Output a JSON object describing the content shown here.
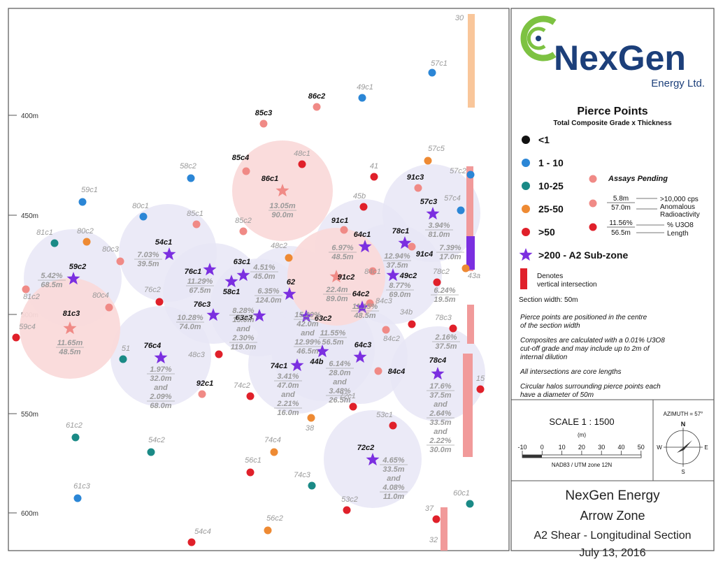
{
  "company": {
    "name": "NexGen",
    "sub": "Energy Ltd."
  },
  "legend": {
    "title": "Pierce Points",
    "subtitle": "Total Composite Grade x Thickness",
    "classes": [
      {
        "label": "<1",
        "color": "#111111"
      },
      {
        "label": "1 - 10",
        "color": "#2b86d6"
      },
      {
        "label": "10-25",
        "color": "#1a8a86"
      },
      {
        "label": "25-50",
        "color": "#ee8a33"
      },
      {
        "label": ">50",
        "color": "#e0202a"
      },
      {
        "label": ">200 - A2 Sub-zone",
        "color": "#7b2fe0"
      }
    ],
    "assays_pending": "Assays Pending",
    "anomalous_top": "5.8m",
    "anomalous_bottom": "57.0m",
    "anomalous_label1": ">10,000 cps",
    "anomalous_label2": "Anomalous",
    "anomalous_label3": "Radioactivity",
    "grade_top": "11.56%",
    "grade_bottom": "56.5m",
    "grade_label1": "% U3O8",
    "grade_label2": "Length",
    "vertical_label1": "Denotes",
    "vertical_label2": "vertical intersection",
    "section_width": "Section width: 50m",
    "notes": [
      "Pierce points are positioned in the centre",
      "of the section width",
      "Composites are calculated with a 0.01% U3O8",
      "cut-off grade and may include up to 2m of",
      "internal dilution",
      "All intersections are core lengths",
      "Circular halos surrounding pierce points each",
      "have a diameter of 50m"
    ]
  },
  "scale": {
    "label": "SCALE  1 : 1500",
    "unit": "(m)",
    "ticks": [
      "-10",
      "0",
      "10",
      "20",
      "30",
      "40",
      "50"
    ],
    "datum": "NAD83 / UTM zone 12N"
  },
  "azimuth": {
    "label": "AZIMUTH = 57°",
    "n": "N",
    "s": "S",
    "e": "E",
    "w": "W"
  },
  "title_block": {
    "line1": "NexGen Energy",
    "line2": "Arrow Zone",
    "line3": "A2 Shear - Longitudinal Section",
    "line4": "July 13, 2016"
  },
  "elevations": [
    "400m",
    "450m",
    "500m",
    "550m",
    "600m"
  ],
  "colors": {
    "halo_purple": "#e8e6f6",
    "halo_red": "#fadada",
    "pending": "#f08a86",
    "vertical": "#f19a9a",
    "orange_bar": "#f9c69a"
  },
  "points": [
    {
      "id": "30",
      "c": "gray"
    },
    {
      "id": "57c1",
      "c": "blue"
    },
    {
      "id": "49c1",
      "c": "blue"
    },
    {
      "id": "86c2",
      "c": "pending"
    },
    {
      "id": "85c3",
      "c": "pending"
    },
    {
      "id": "48c1",
      "c": "red"
    },
    {
      "id": "57c5",
      "c": "orange"
    },
    {
      "id": "85c4",
      "c": "pending"
    },
    {
      "id": "86c1",
      "c": "star-pending"
    },
    {
      "id": "58c2",
      "c": "blue"
    },
    {
      "id": "41",
      "c": "red"
    },
    {
      "id": "57c2",
      "c": "blue"
    },
    {
      "id": "91c3",
      "c": "pending"
    },
    {
      "id": "59c1",
      "c": "blue"
    },
    {
      "id": "45b",
      "c": "red"
    },
    {
      "id": "57c3",
      "c": "star"
    },
    {
      "id": "57c4",
      "c": "blue"
    },
    {
      "id": "80c1",
      "c": "blue"
    },
    {
      "id": "85c1",
      "c": "pending"
    },
    {
      "id": "85c2",
      "c": "pending"
    },
    {
      "id": "91c1",
      "c": "pending"
    },
    {
      "id": "81c1",
      "c": "teal"
    },
    {
      "id": "80c2",
      "c": "orange"
    },
    {
      "id": "54c1",
      "c": "star"
    },
    {
      "id": "64c1",
      "c": "star"
    },
    {
      "id": "78c1",
      "c": "star"
    },
    {
      "id": "80c3",
      "c": "pending"
    },
    {
      "id": "48c2",
      "c": "orange"
    },
    {
      "id": "91c4",
      "c": "pending"
    },
    {
      "id": "59c2",
      "c": "star"
    },
    {
      "id": "76c1",
      "c": "star"
    },
    {
      "id": "63c1",
      "c": "star"
    },
    {
      "id": "58c1",
      "c": "star"
    },
    {
      "id": "91c2",
      "c": "star-pending"
    },
    {
      "id": "49c2",
      "c": "star"
    },
    {
      "id": "84c1",
      "c": "pending"
    },
    {
      "id": "78c2",
      "c": "red"
    },
    {
      "id": "43a",
      "c": "orange"
    },
    {
      "id": "81c2",
      "c": "pending"
    },
    {
      "id": "76c2",
      "c": "red"
    },
    {
      "id": "62",
      "c": "star"
    },
    {
      "id": "64c2",
      "c": "star"
    },
    {
      "id": "84c3",
      "c": "pending"
    },
    {
      "id": "80c4",
      "c": "pending"
    },
    {
      "id": "76c3",
      "c": "star"
    },
    {
      "id": "63c3",
      "c": "star"
    },
    {
      "id": "63c2",
      "c": "star"
    },
    {
      "id": "34b",
      "c": "red"
    },
    {
      "id": "59c4",
      "c": "red"
    },
    {
      "id": "81c3",
      "c": "star-pending"
    },
    {
      "id": "78c3",
      "c": "red"
    },
    {
      "id": "84c2",
      "c": "pending"
    },
    {
      "id": "51",
      "c": "teal"
    },
    {
      "id": "76c4",
      "c": "star"
    },
    {
      "id": "48c3",
      "c": "red"
    },
    {
      "id": "44b",
      "c": "star"
    },
    {
      "id": "64c3",
      "c": "star"
    },
    {
      "id": "74c1",
      "c": "star"
    },
    {
      "id": "84c4",
      "c": "pending"
    },
    {
      "id": "78c4",
      "c": "star"
    },
    {
      "id": "92c1",
      "c": "pending"
    },
    {
      "id": "74c2",
      "c": "red"
    },
    {
      "id": "72c1",
      "c": "red"
    },
    {
      "id": "15",
      "c": "red"
    },
    {
      "id": "38",
      "c": "orange"
    },
    {
      "id": "53c1",
      "c": "red"
    },
    {
      "id": "61c2",
      "c": "teal"
    },
    {
      "id": "54c2",
      "c": "teal"
    },
    {
      "id": "74c4",
      "c": "orange"
    },
    {
      "id": "72c2",
      "c": "star"
    },
    {
      "id": "56c1",
      "c": "red"
    },
    {
      "id": "74c3",
      "c": "teal"
    },
    {
      "id": "61c3",
      "c": "blue"
    },
    {
      "id": "60c1",
      "c": "teal"
    },
    {
      "id": "53c2",
      "c": "red"
    },
    {
      "id": "37",
      "c": "red"
    },
    {
      "id": "56c2",
      "c": "orange"
    },
    {
      "id": "54c4",
      "c": "red"
    },
    {
      "id": "32",
      "c": "gray"
    }
  ],
  "intersections": [
    {
      "id": "86c1",
      "lines": [
        "13.05m",
        "90.0m"
      ]
    },
    {
      "id": "57c3",
      "lines": [
        "3.94%",
        "81.0m"
      ]
    },
    {
      "id": "54c1",
      "lines": [
        "7.03%",
        "39.5m"
      ]
    },
    {
      "id": "63c1",
      "lines": [
        "4.51%",
        "45.0m"
      ]
    },
    {
      "id": "64c1",
      "lines": [
        "6.97%",
        "48.5m"
      ]
    },
    {
      "id": "78c1",
      "lines": [
        "12.94%",
        "37.5m"
      ]
    },
    {
      "id": "91c4",
      "lines": [
        "7.39%",
        "17.0m"
      ]
    },
    {
      "id": "59c2",
      "lines": [
        "5.42%",
        "68.5m"
      ]
    },
    {
      "id": "76c1",
      "lines": [
        "11.29%",
        "67.5m"
      ]
    },
    {
      "id": "91c2",
      "lines": [
        "22.4m",
        "89.0m"
      ]
    },
    {
      "id": "49c2",
      "lines": [
        "8.77%",
        "69.0m"
      ]
    },
    {
      "id": "78c2",
      "lines": [
        "6.24%",
        "19.5m"
      ]
    },
    {
      "id": "62",
      "lines": [
        "6.35%",
        "124.0m"
      ]
    },
    {
      "id": "64c2",
      "lines": [
        "11.15%",
        "48.5m"
      ]
    },
    {
      "id": "76c3",
      "lines": [
        "10.28%",
        "74.0m"
      ]
    },
    {
      "id": "63c3",
      "lines": [
        "8.28%",
        "15.0m",
        "and",
        "2.30%",
        "119.0m"
      ]
    },
    {
      "id": "63c2",
      "lines": [
        "15.20%",
        "42.0m",
        "and",
        "12.99%",
        "46.5m"
      ]
    },
    {
      "id": "81c3",
      "lines": [
        "11.65m",
        "48.5m"
      ]
    },
    {
      "id": "64c3",
      "lines": [
        "11.55%",
        "56.5m"
      ]
    },
    {
      "id": "78c3",
      "lines": [
        "2.16%",
        "37.5m"
      ]
    },
    {
      "id": "44b",
      "lines": [
        "6.14%",
        "28.0m",
        "and",
        "3.48%",
        "26.5m"
      ]
    },
    {
      "id": "74c1",
      "lines": [
        "3.41%",
        "47.0m",
        "and",
        "2.21%",
        "16.0m"
      ]
    },
    {
      "id": "76c4",
      "lines": [
        "1.97%",
        "32.0m",
        "and",
        "2.09%",
        "68.0m"
      ]
    },
    {
      "id": "78c4",
      "lines": [
        "17.6%",
        "37.5m",
        "and",
        "2.64%",
        "33.5m",
        "and",
        "2.22%",
        "30.0m"
      ]
    },
    {
      "id": "72c2",
      "lines": [
        "4.65%",
        "33.5m",
        "and",
        "4.08%",
        "11.0m"
      ]
    }
  ]
}
